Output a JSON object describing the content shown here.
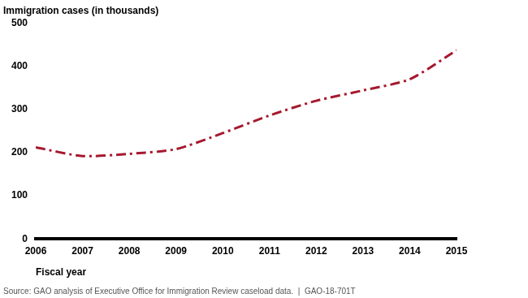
{
  "chart_data": {
    "type": "line",
    "y_label": "Immigration cases (in thousands)",
    "x_label": "Fiscal year",
    "source": "Source: GAO analysis of Executive Office for Immigration Review caseload data.  |  GAO-18-701T",
    "categories": [
      "2006",
      "2007",
      "2008",
      "2009",
      "2010",
      "2011",
      "2012",
      "2013",
      "2014",
      "2015"
    ],
    "values": [
      212,
      192,
      197,
      208,
      245,
      286,
      320,
      344,
      370,
      437
    ],
    "color": "#a6192e",
    "line_style": "dashdot",
    "ylim": [
      0,
      500
    ],
    "yticks": [
      0,
      100,
      200,
      300,
      400,
      500
    ],
    "grid": false
  }
}
